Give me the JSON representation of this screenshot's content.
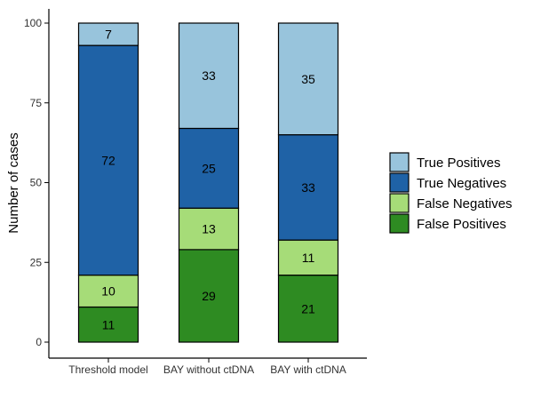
{
  "chart_data": {
    "type": "bar",
    "stacked": true,
    "categories": [
      "Threshold model",
      "BAY without ctDNA",
      "BAY with ctDNA"
    ],
    "ylabel": "Number of cases",
    "ylim": [
      0,
      100
    ],
    "yticks": [
      0,
      25,
      50,
      75,
      100
    ],
    "grid": false,
    "legend_position": "right",
    "series": [
      {
        "name": "False Positives",
        "color": "#2e8b22",
        "values": [
          11,
          29,
          21
        ]
      },
      {
        "name": "False Negatives",
        "color": "#a6dc78",
        "values": [
          10,
          13,
          11
        ]
      },
      {
        "name": "True Negatives",
        "color": "#1f62a6",
        "values": [
          72,
          25,
          33
        ]
      },
      {
        "name": "True Positives",
        "color": "#98c4dc",
        "values": [
          7,
          33,
          35
        ]
      }
    ],
    "legend_order": [
      "True Positives",
      "True Negatives",
      "False Negatives",
      "False Positives"
    ]
  }
}
